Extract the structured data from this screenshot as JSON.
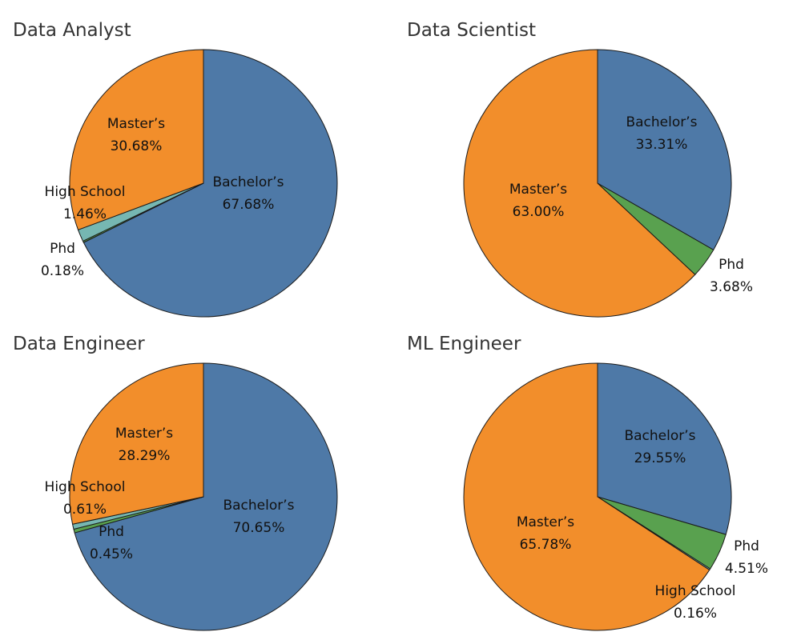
{
  "colors": {
    "bachelors": "#4e79a7",
    "masters": "#f28e2b",
    "high_school": "#76b7b2",
    "phd": "#59a14f",
    "outline": "#1a1a1a"
  },
  "chart_data": [
    {
      "type": "pie",
      "title": "Data Analyst",
      "slices": [
        {
          "label": "Bachelor’s",
          "value": 67.68,
          "value_text": "67.68%",
          "color": "#4e79a7"
        },
        {
          "label": "Phd",
          "value": 0.18,
          "value_text": "0.18%",
          "color": "#59a14f"
        },
        {
          "label": "High School",
          "value": 1.46,
          "value_text": "1.46%",
          "color": "#76b7b2"
        },
        {
          "label": "Master’s",
          "value": 30.68,
          "value_text": "30.68%",
          "color": "#f28e2b"
        }
      ]
    },
    {
      "type": "pie",
      "title": "Data Scientist",
      "slices": [
        {
          "label": "Bachelor’s",
          "value": 33.31,
          "value_text": "33.31%",
          "color": "#4e79a7"
        },
        {
          "label": "Phd",
          "value": 3.68,
          "value_text": "3.68%",
          "color": "#59a14f"
        },
        {
          "label": "Master’s",
          "value": 63.0,
          "value_text": "63.00%",
          "color": "#f28e2b"
        }
      ]
    },
    {
      "type": "pie",
      "title": "Data Engineer",
      "slices": [
        {
          "label": "Bachelor’s",
          "value": 70.65,
          "value_text": "70.65%",
          "color": "#4e79a7"
        },
        {
          "label": "Phd",
          "value": 0.45,
          "value_text": "0.45%",
          "color": "#59a14f"
        },
        {
          "label": "High School",
          "value": 0.61,
          "value_text": "0.61%",
          "color": "#76b7b2"
        },
        {
          "label": "Master’s",
          "value": 28.29,
          "value_text": "28.29%",
          "color": "#f28e2b"
        }
      ]
    },
    {
      "type": "pie",
      "title": "ML Engineer",
      "slices": [
        {
          "label": "Bachelor’s",
          "value": 29.55,
          "value_text": "29.55%",
          "color": "#4e79a7"
        },
        {
          "label": "Phd",
          "value": 4.51,
          "value_text": "4.51%",
          "color": "#59a14f"
        },
        {
          "label": "High School",
          "value": 0.16,
          "value_text": "0.16%",
          "color": "#76b7b2"
        },
        {
          "label": "Master’s",
          "value": 65.78,
          "value_text": "65.78%",
          "color": "#f28e2b"
        }
      ]
    }
  ]
}
